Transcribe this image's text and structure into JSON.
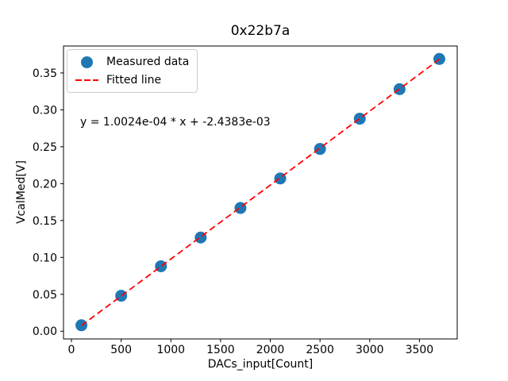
{
  "chart_data": {
    "type": "scatter",
    "title": "0x22b7a",
    "xlabel": "DACs_input[Count]",
    "ylabel": "VcalMed[V]",
    "x": [
      100,
      500,
      900,
      1300,
      1700,
      2100,
      2500,
      2900,
      3300,
      3700
    ],
    "y": [
      0.008,
      0.048,
      0.088,
      0.127,
      0.167,
      0.207,
      0.247,
      0.288,
      0.328,
      0.369
    ],
    "xlim": [
      -80,
      3880
    ],
    "ylim": [
      -0.0105,
      0.3865
    ],
    "xticks": [
      0,
      500,
      1000,
      1500,
      2000,
      2500,
      3000,
      3500
    ],
    "xtick_labels": [
      "0",
      "500",
      "1000",
      "1500",
      "2000",
      "2500",
      "3000",
      "3500"
    ],
    "yticks": [
      0.0,
      0.05,
      0.1,
      0.15,
      0.2,
      0.25,
      0.3,
      0.35
    ],
    "ytick_labels": [
      "0.00",
      "0.05",
      "0.10",
      "0.15",
      "0.20",
      "0.25",
      "0.30",
      "0.35"
    ],
    "grid": false,
    "legend_position": "upper left",
    "annotation": "y = 1.0024e-04 * x + -2.4383e-03",
    "fit": {
      "slope": 0.00010024,
      "intercept": -0.0024383,
      "x_start": 100,
      "x_end": 3700
    },
    "marker_color": "#1f77b4",
    "line_color": "#ff0000",
    "frame_color": "#000000",
    "legend": [
      {
        "label": "Measured data",
        "type": "marker",
        "color": "#1f77b4"
      },
      {
        "label": "Fitted line",
        "type": "dashed-line",
        "color": "#ff0000"
      }
    ]
  }
}
